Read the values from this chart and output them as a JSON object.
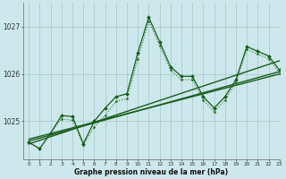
{
  "title": "Graphe pression niveau de la mer (hPa)",
  "bg_color": "#cce8ec",
  "grid_color": "#aacccc",
  "line_color_main": "#1a5c1a",
  "xlim": [
    -0.5,
    23
  ],
  "ylim": [
    1024.2,
    1027.5
  ],
  "yticks": [
    1025,
    1026,
    1027
  ],
  "ytick_labels": [
    "1025",
    "1026",
    "1027"
  ],
  "xticks": [
    0,
    1,
    2,
    3,
    4,
    5,
    6,
    7,
    8,
    9,
    10,
    11,
    12,
    13,
    14,
    15,
    16,
    17,
    18,
    19,
    20,
    21,
    22,
    23
  ],
  "series1": [
    1024.55,
    1024.42,
    1024.75,
    1025.12,
    1025.1,
    1024.52,
    1025.0,
    1025.28,
    1025.52,
    1025.58,
    1026.45,
    1027.2,
    1026.68,
    1026.15,
    1025.95,
    1025.95,
    1025.52,
    1025.28,
    1025.52,
    1025.88,
    1026.58,
    1026.48,
    1026.38,
    1026.08
  ],
  "series2": [
    1024.55,
    1024.42,
    1024.75,
    1025.05,
    1025.02,
    1024.5,
    1024.88,
    1025.12,
    1025.42,
    1025.48,
    1026.32,
    1027.12,
    1026.6,
    1026.08,
    1025.88,
    1025.88,
    1025.45,
    1025.2,
    1025.45,
    1025.82,
    1026.52,
    1026.42,
    1026.32,
    1026.02
  ],
  "trend1_x": [
    0,
    23
  ],
  "trend1_y": [
    1024.52,
    1026.28
  ],
  "trend2_x": [
    0,
    23
  ],
  "trend2_y": [
    1024.58,
    1026.05
  ],
  "trend3_x": [
    0,
    23
  ],
  "trend3_y": [
    1024.62,
    1026.0
  ]
}
